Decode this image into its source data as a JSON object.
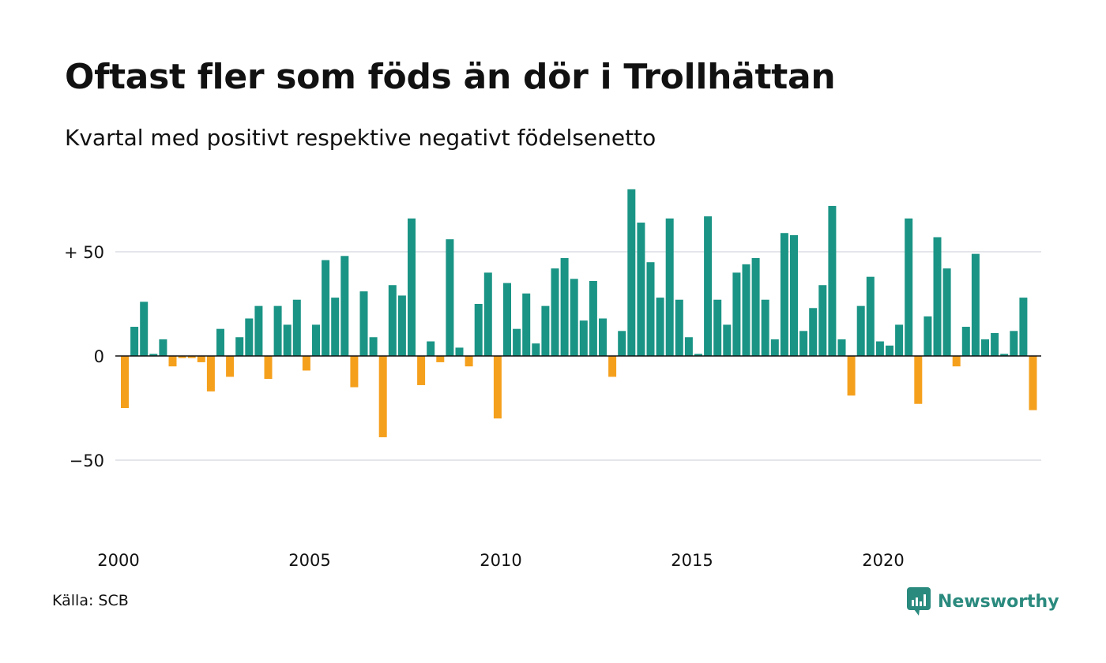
{
  "header": {
    "title": "Oftast fler som föds än dör i Trollhättan",
    "subtitle": "Kvartal med positivt respektive negativt födelsenetto"
  },
  "footer": {
    "source": "Källa: SCB",
    "brand": "Newsworthy",
    "brand_icon": "newsworthy-logo-icon"
  },
  "colors": {
    "positive": "#1a9485",
    "negative": "#f5a01d",
    "grid": "#dcdde3",
    "zero_line": "#111111",
    "brand": "#2a8a7e"
  },
  "chart_data": {
    "type": "bar",
    "title": "Oftast fler som föds än dör i Trollhättan",
    "subtitle": "Kvartal med positivt respektive negativt födelsenetto",
    "xlabel": "",
    "ylabel": "",
    "x_start": "2000 Q1",
    "x_interval": "quarter",
    "x_ticks": [
      "2000",
      "2005",
      "2010",
      "2015",
      "2020"
    ],
    "y_ticks": [
      {
        "value": 50,
        "label": "+ 50"
      },
      {
        "value": 0,
        "label": "0"
      },
      {
        "value": -50,
        "label": "−50"
      }
    ],
    "ylim": [
      -70,
      80
    ],
    "grid": true,
    "values": [
      -25,
      14,
      26,
      1,
      8,
      -5,
      -1,
      -1,
      -3,
      -17,
      13,
      -10,
      9,
      18,
      24,
      -11,
      24,
      15,
      27,
      -7,
      15,
      46,
      28,
      48,
      -15,
      31,
      9,
      -39,
      34,
      29,
      66,
      -14,
      7,
      -3,
      56,
      4,
      -5,
      25,
      40,
      -30,
      35,
      13,
      30,
      6,
      24,
      42,
      47,
      37,
      17,
      36,
      18,
      -10,
      12,
      80,
      64,
      45,
      28,
      66,
      27,
      9,
      1,
      67,
      27,
      15,
      40,
      44,
      47,
      27,
      8,
      59,
      58,
      12,
      23,
      34,
      72,
      8,
      -19,
      24,
      38,
      7,
      5,
      15,
      66,
      -23,
      19,
      57,
      42,
      -5,
      14,
      49,
      8,
      11,
      1,
      12,
      28,
      -26
    ]
  }
}
